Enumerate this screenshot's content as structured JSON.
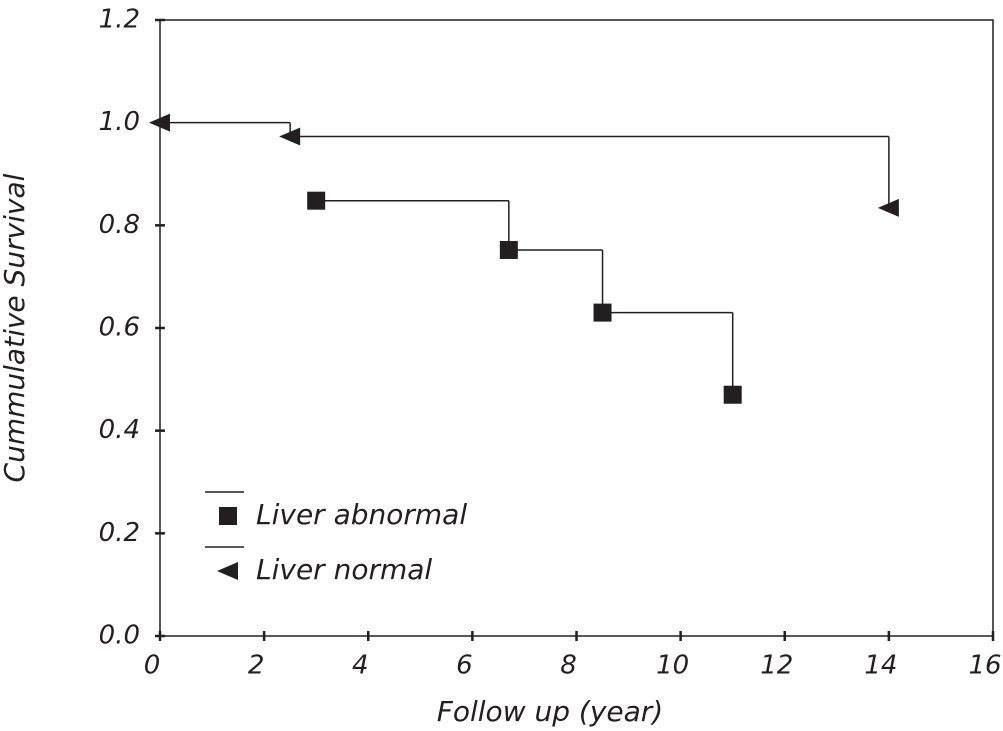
{
  "chart_data": {
    "type": "step",
    "xlabel": "Follow up (year)",
    "ylabel": "Cummulative Survival",
    "xlim": [
      0,
      16
    ],
    "xticks": [
      0,
      2,
      4,
      6,
      8,
      10,
      12,
      14,
      16
    ],
    "ylim": [
      0,
      1.2
    ],
    "yticks": [
      {
        "value": 0,
        "label": "0.0"
      },
      0.2,
      0.4,
      0.6,
      0.8,
      {
        "value": 1,
        "label": "1.0"
      },
      1.2
    ],
    "legend": "lower left",
    "series": [
      {
        "name": "Liver abnormal",
        "color": "#231f20",
        "marker": "square",
        "x": [
          3.0,
          6.7,
          8.5,
          11.0
        ],
        "values": [
          0.848,
          0.752,
          0.63,
          0.47
        ]
      },
      {
        "name": "Liver normal",
        "color": "#231f20",
        "marker": "triangle-left",
        "x": [
          0,
          2.5,
          14.0
        ],
        "values": [
          1.0,
          0.973,
          0.834
        ]
      }
    ]
  }
}
